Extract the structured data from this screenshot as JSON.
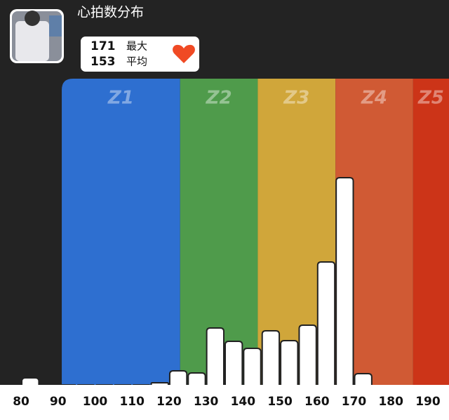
{
  "chart_data": {
    "type": "histogram",
    "title": "心拍数分布",
    "stats": [
      {
        "value": 171,
        "label": "最大"
      },
      {
        "value": 153,
        "label": "平均"
      }
    ],
    "zones": [
      {
        "name": "Z1",
        "from": 91,
        "to": 123,
        "color": "#2e6fd0"
      },
      {
        "name": "Z2",
        "from": 123,
        "to": 144,
        "color": "#4f9b4b"
      },
      {
        "name": "Z3",
        "from": 144,
        "to": 165,
        "color": "#d0a63a"
      },
      {
        "name": "Z4",
        "from": 165,
        "to": 186,
        "color": "#d05a34"
      },
      {
        "name": "Z5",
        "from": 186,
        "to": 195.7,
        "color": "#cc3418"
      }
    ],
    "bins": [
      80,
      85,
      90,
      95,
      100,
      105,
      110,
      115,
      120,
      125,
      130,
      135,
      140,
      145,
      150,
      155,
      160,
      165,
      170,
      175
    ],
    "counts": [
      10,
      0,
      0,
      0,
      0,
      0,
      0,
      3,
      20,
      17,
      81,
      62,
      52,
      77,
      63,
      85,
      175,
      295,
      16
    ],
    "color": "#ffffff",
    "xlim": [
      74.3,
      195.7
    ],
    "xticks": [
      80,
      90,
      100,
      110,
      120,
      130,
      140,
      150,
      160,
      170,
      180,
      190
    ],
    "ylim": [
      0,
      436
    ]
  }
}
